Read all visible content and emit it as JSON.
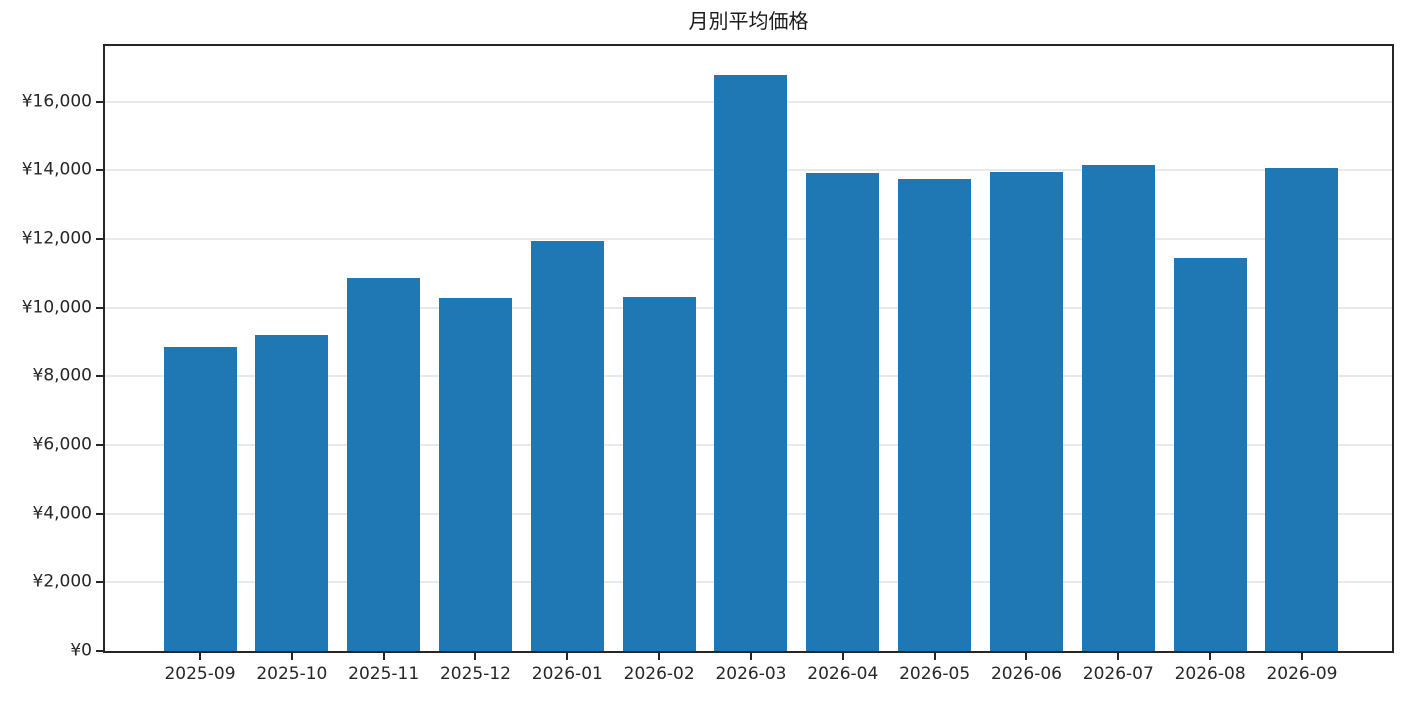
{
  "figure": {
    "title": "月別平均価格"
  },
  "chart_data": {
    "type": "bar",
    "title": "月別平均価格",
    "categories": [
      "2025-09",
      "2025-10",
      "2025-11",
      "2025-12",
      "2026-01",
      "2026-02",
      "2026-03",
      "2026-04",
      "2026-05",
      "2026-06",
      "2026-07",
      "2026-08",
      "2026-09"
    ],
    "values": [
      8850,
      9200,
      10850,
      10280,
      11950,
      10320,
      16780,
      13920,
      13740,
      13950,
      14150,
      11460,
      14060
    ],
    "xlabel": "",
    "ylabel": "",
    "y_ticks": [
      0,
      2000,
      4000,
      6000,
      8000,
      10000,
      12000,
      14000,
      16000
    ],
    "y_tick_labels": [
      "¥0",
      "¥2,000",
      "¥4,000",
      "¥6,000",
      "¥8,000",
      "¥10,000",
      "¥12,000",
      "¥14,000",
      "¥16,000"
    ],
    "ylim": [
      0,
      17620
    ],
    "grid": "horizontal",
    "legend": "none",
    "colors": {
      "bar": "#1f77b4",
      "spine": "#262626",
      "grid": "#e9e9e9",
      "background": "#ffffff",
      "text": "#262626"
    }
  }
}
